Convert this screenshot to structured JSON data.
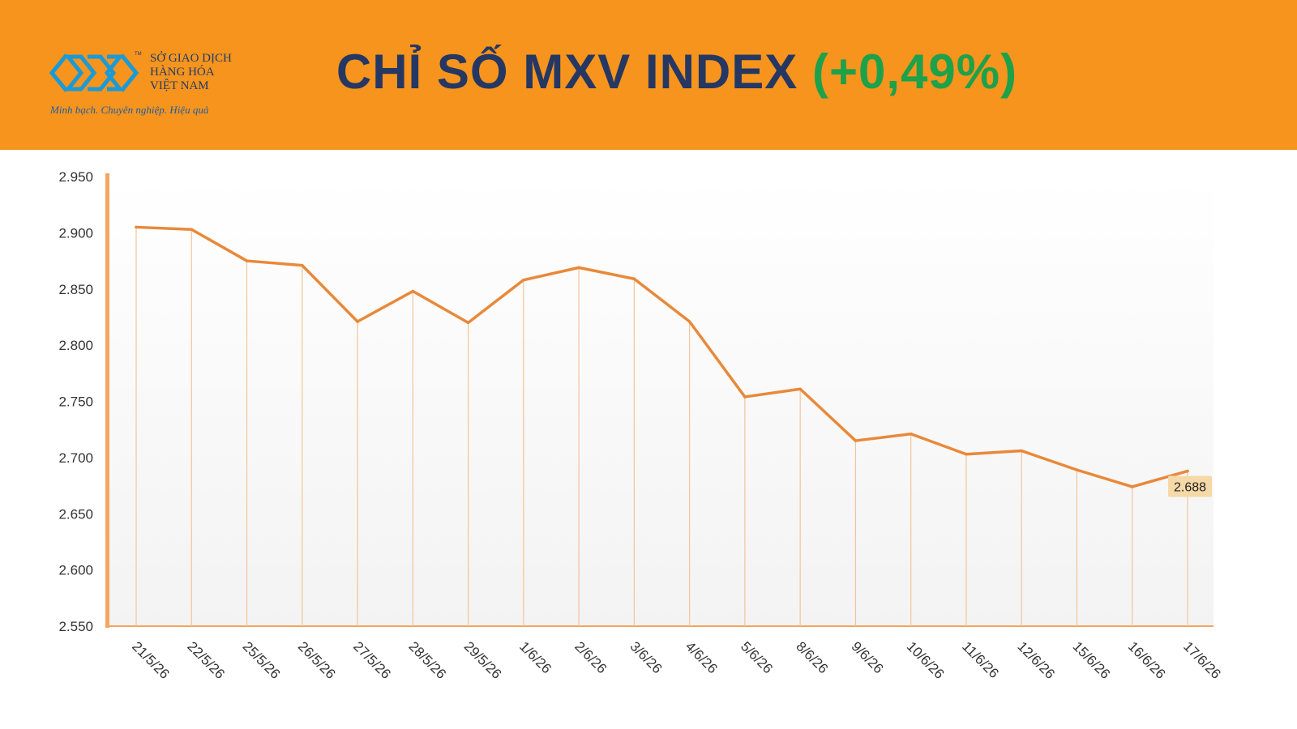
{
  "brand": {
    "name_lines": [
      "SỞ GIAO DỊCH",
      "HÀNG HÓA",
      "VIỆT NAM"
    ],
    "tm": "TM",
    "slogan": "Minh bạch. Chuyên nghiệp. Hiệu quả",
    "logo_color": "#1a9ad6"
  },
  "header": {
    "title_main": "CHỈ SỐ MXV INDEX",
    "title_change": "(+0,49%)",
    "bg_color": "#f7941d",
    "title_color": "#253763",
    "change_color": "#1da14a"
  },
  "chart_data": {
    "type": "line",
    "title": "CHỈ SỐ MXV INDEX",
    "x": [
      "21/5/26",
      "22/5/26",
      "25/5/26",
      "26/5/26",
      "27/5/26",
      "28/5/26",
      "29/5/26",
      "1/6/26",
      "2/6/26",
      "3/6/26",
      "4/6/26",
      "5/6/26",
      "8/6/26",
      "9/6/26",
      "10/6/26",
      "11/6/26",
      "12/6/26",
      "15/6/26",
      "16/6/26",
      "17/6/26"
    ],
    "values": [
      2905,
      2903,
      2875,
      2871,
      2821,
      2848,
      2820,
      2858,
      2869,
      2859,
      2821,
      2754,
      2761,
      2715,
      2721,
      2703,
      2706,
      2689,
      2674,
      2688
    ],
    "ylim": [
      2550,
      2950
    ],
    "yticks": [
      2550,
      2600,
      2650,
      2700,
      2750,
      2800,
      2850,
      2900,
      2950
    ],
    "ytick_labels": [
      "2.550",
      "2.600",
      "2.650",
      "2.700",
      "2.750",
      "2.800",
      "2.850",
      "2.900",
      "2.950"
    ],
    "last_value_label": "2.688",
    "line_color": "#e8893a",
    "drop_line_color": "#f3c49a",
    "label_bg": "#f5d9a8",
    "grid": false
  }
}
